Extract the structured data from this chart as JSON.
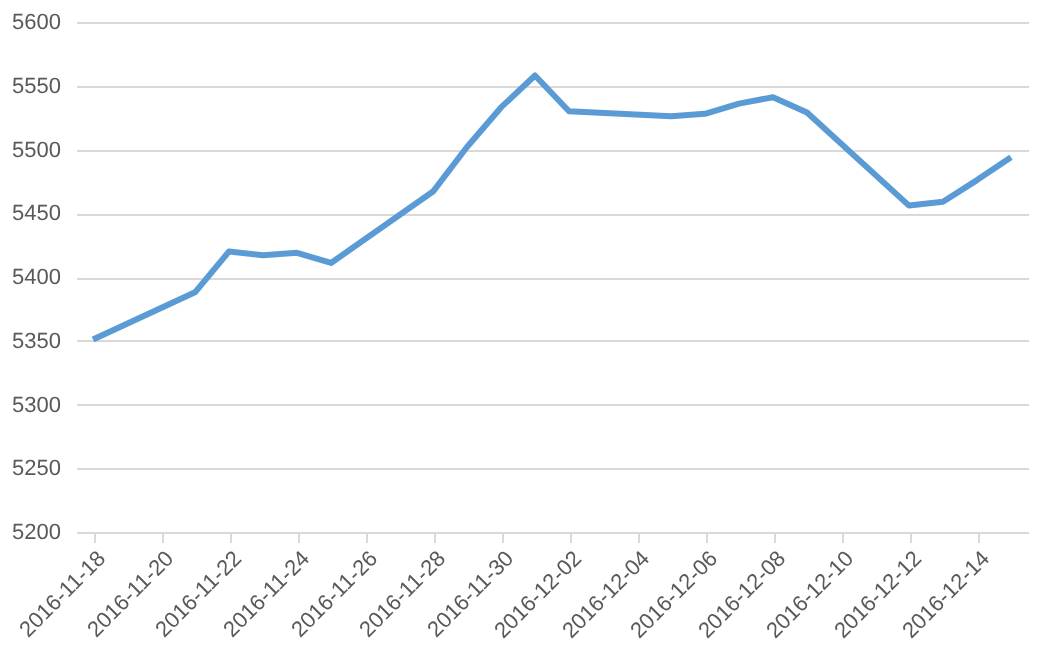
{
  "chart_data": {
    "type": "line",
    "x": [
      "2016-11-18",
      "2016-11-21",
      "2016-11-22",
      "2016-11-23",
      "2016-11-24",
      "2016-11-25",
      "2016-11-28",
      "2016-11-29",
      "2016-11-30",
      "2016-12-01",
      "2016-12-02",
      "2016-12-05",
      "2016-12-06",
      "2016-12-07",
      "2016-12-08",
      "2016-12-09",
      "2016-12-12",
      "2016-12-13",
      "2016-12-14",
      "2016-12-15"
    ],
    "series": [
      {
        "color": "#5b9bd5",
        "values": [
          5351,
          5388,
          5420,
          5417,
          5419,
          5411,
          5467,
          5502,
          5533,
          5558,
          5530,
          5526,
          5528,
          5536,
          5541,
          5529,
          5456,
          5459,
          5476,
          5494
        ]
      }
    ],
    "xlim": [
      "2016-11-17T12:00",
      "2016-12-15T12:00"
    ],
    "xticks": [
      "2016-11-18",
      "2016-11-20",
      "2016-11-22",
      "2016-11-24",
      "2016-11-26",
      "2016-11-28",
      "2016-11-30",
      "2016-12-02",
      "2016-12-04",
      "2016-12-06",
      "2016-12-08",
      "2016-12-10",
      "2016-12-12",
      "2016-12-14"
    ],
    "ylim": [
      5200,
      5600
    ],
    "yticks": [
      5200,
      5250,
      5300,
      5350,
      5400,
      5450,
      5500,
      5550,
      5600
    ],
    "grid": "y",
    "legend": false,
    "marker": "none",
    "line_style": "solid"
  }
}
